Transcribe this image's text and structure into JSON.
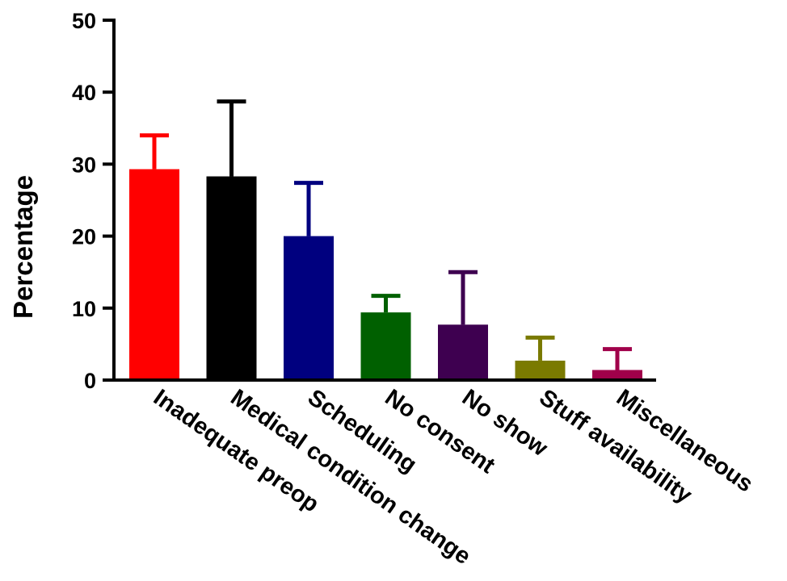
{
  "chart_data": {
    "type": "bar",
    "title": "",
    "xlabel": "",
    "ylabel": "Percentage",
    "ylim": [
      0,
      50
    ],
    "yticks": [
      0,
      10,
      20,
      30,
      40,
      50
    ],
    "grid": false,
    "legend": "none",
    "categories": [
      "Inadequate preop",
      "Medical condition change",
      "Scheduling",
      "No consent",
      "No show",
      "Stuff availability",
      "Miscellaneous"
    ],
    "values": [
      29.3,
      28.3,
      20.0,
      9.4,
      7.7,
      2.7,
      1.4
    ],
    "error_upper": [
      4.7,
      10.4,
      7.4,
      2.3,
      7.3,
      3.2,
      2.9
    ],
    "colors": [
      "#ff0000",
      "#000000",
      "#00007f",
      "#006000",
      "#3e0050",
      "#7a7a00",
      "#a0004a"
    ],
    "error_bars": "upper"
  }
}
